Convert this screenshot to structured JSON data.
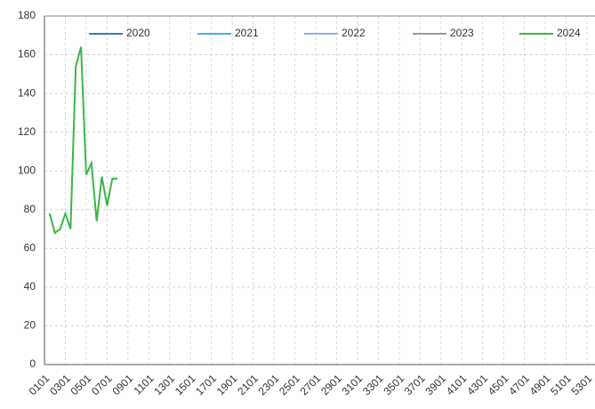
{
  "chart_data": {
    "type": "line",
    "categories": [
      "0101",
      null,
      null,
      null,
      "0301",
      null,
      null,
      null,
      "0501",
      null,
      null,
      null,
      "0701",
      null,
      null,
      null,
      "0901",
      null,
      null,
      null,
      "1101",
      null,
      null,
      null,
      "1301",
      null,
      null,
      null,
      "1501",
      null,
      null,
      null,
      "1701",
      null,
      null,
      null,
      "1901",
      null,
      null,
      null,
      "2101",
      null,
      null,
      null,
      "2301",
      null,
      null,
      null,
      "2501",
      null,
      null,
      null,
      "2701",
      null,
      null,
      null,
      "2901",
      null,
      null,
      null,
      "3101",
      null,
      null,
      null,
      "3301",
      null,
      null,
      null,
      "3501",
      null,
      null,
      null,
      "3701",
      null,
      null,
      null,
      "3901",
      null,
      null,
      null,
      "4101",
      null,
      null,
      null,
      "4301",
      null,
      null,
      null,
      "4501",
      null,
      null,
      null,
      "4701",
      null,
      null,
      null,
      "4901",
      null,
      null,
      null,
      "5101",
      null,
      null,
      null,
      "5301"
    ],
    "series": [
      {
        "name": "2020",
        "color": "#3a78c4"
      },
      {
        "name": "2021",
        "color": "#3fb4ec"
      },
      {
        "name": "2022",
        "color": "#8fb6e2"
      },
      {
        "name": "2023",
        "color": "#9a9a9a"
      },
      {
        "name": "2024",
        "color": "#3cb54a",
        "values": [
          null,
          78,
          68,
          70,
          78,
          70,
          154,
          164,
          98,
          104,
          74,
          97,
          82,
          96,
          96,
          null,
          null,
          null,
          null,
          null,
          null,
          null,
          null,
          null,
          null,
          null,
          null,
          null,
          null,
          null,
          null,
          null,
          null,
          null,
          null,
          null,
          null,
          null,
          null,
          null,
          null,
          null,
          null,
          null,
          null,
          null,
          null,
          null,
          null,
          null,
          null,
          null,
          null,
          null,
          null,
          null,
          null,
          null,
          null,
          null,
          null,
          null,
          null,
          null,
          null,
          null,
          null,
          null,
          null,
          null,
          null,
          null,
          null,
          null,
          null,
          null,
          null,
          null,
          null,
          null,
          null,
          null,
          null,
          null,
          null,
          null,
          null,
          null,
          null,
          null,
          null,
          null,
          null,
          null,
          null,
          null,
          null,
          null,
          null,
          null,
          null,
          null,
          null,
          null,
          null
        ]
      }
    ],
    "ylim": [
      0,
      180
    ],
    "yticks": [
      0,
      20,
      40,
      60,
      80,
      100,
      120,
      140,
      160,
      180
    ],
    "grid": true
  }
}
